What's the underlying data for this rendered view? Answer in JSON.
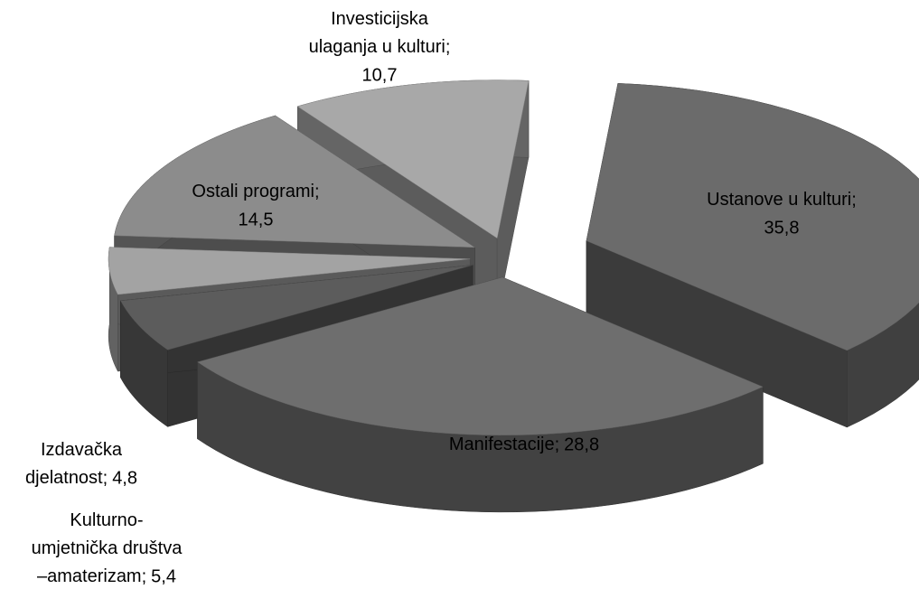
{
  "chart_data": {
    "type": "pie3d",
    "categories": [
      "Ustanove u kulturi",
      "Manifestacije",
      "Kulturno-umjetnička društva –amaterizam",
      "Izdavačka djelatnost",
      "Ostali programi",
      "Investicijska ulaganja u kulturi"
    ],
    "values": [
      35.8,
      28.8,
      5.4,
      4.8,
      14.5,
      10.7
    ],
    "value_labels": [
      "35,8",
      "28,8",
      "5,4",
      "4,8",
      "14,5",
      "10,7"
    ],
    "label_separator": ";",
    "colors": [
      "#6b6b6b",
      "#6e6e6e",
      "#5c5c5c",
      "#a3a3a3",
      "#8c8c8c",
      "#a8a8a8"
    ]
  }
}
